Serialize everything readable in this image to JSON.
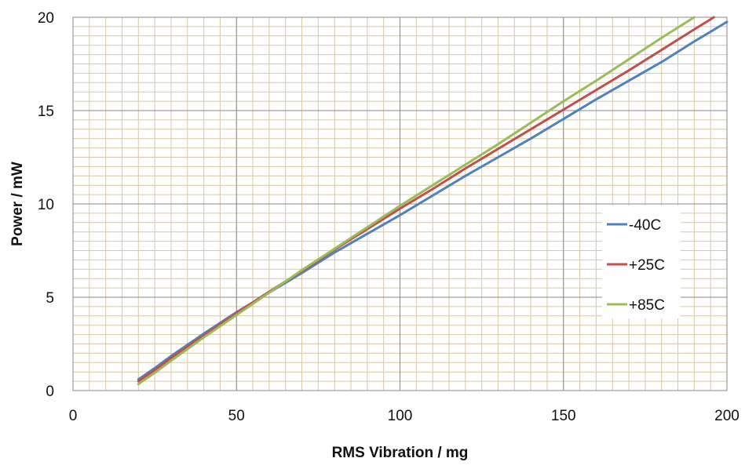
{
  "chart_data": {
    "type": "line",
    "title": "",
    "xlabel": "RMS Vibration / mg",
    "ylabel": "Power / mW",
    "xlim": [
      0,
      200
    ],
    "ylim": [
      0,
      20
    ],
    "x_ticks": [
      0,
      50,
      100,
      150,
      200
    ],
    "y_ticks": [
      0,
      5,
      10,
      15,
      20
    ],
    "minor_grid": {
      "x_step": 5,
      "y_step": 0.5
    },
    "grid": true,
    "legend_position": "right",
    "series": [
      {
        "name": "-40C",
        "color": "#4F81BD",
        "x": [
          20,
          25,
          30,
          40,
          50,
          60,
          70,
          80,
          90,
          100,
          110,
          120,
          130,
          140,
          150,
          160,
          170,
          180,
          190,
          200
        ],
        "y": [
          0.6,
          1.2,
          1.85,
          3.05,
          4.2,
          5.25,
          6.3,
          7.4,
          8.4,
          9.4,
          10.45,
          11.5,
          12.5,
          13.5,
          14.55,
          15.6,
          16.6,
          17.6,
          18.7,
          19.75
        ]
      },
      {
        "name": "+25C",
        "color": "#C0504D",
        "x": [
          20,
          25,
          30,
          40,
          50,
          60,
          70,
          80,
          90,
          100,
          110,
          120,
          130,
          140,
          150,
          160,
          170,
          180,
          190,
          196
        ],
        "y": [
          0.5,
          1.1,
          1.75,
          2.95,
          4.15,
          5.3,
          6.4,
          7.55,
          8.65,
          9.75,
          10.8,
          11.9,
          12.95,
          14.0,
          15.05,
          16.1,
          17.15,
          18.25,
          19.35,
          20.0
        ]
      },
      {
        "name": "+85C",
        "color": "#9BBB59",
        "x": [
          20,
          25,
          30,
          40,
          50,
          60,
          70,
          80,
          90,
          100,
          110,
          120,
          130,
          140,
          150,
          160,
          170,
          180,
          190
        ],
        "y": [
          0.35,
          0.95,
          1.6,
          2.85,
          4.05,
          5.25,
          6.45,
          7.6,
          8.75,
          9.9,
          11.0,
          12.1,
          13.2,
          14.35,
          15.5,
          16.6,
          17.75,
          18.9,
          20.0
        ]
      }
    ]
  }
}
